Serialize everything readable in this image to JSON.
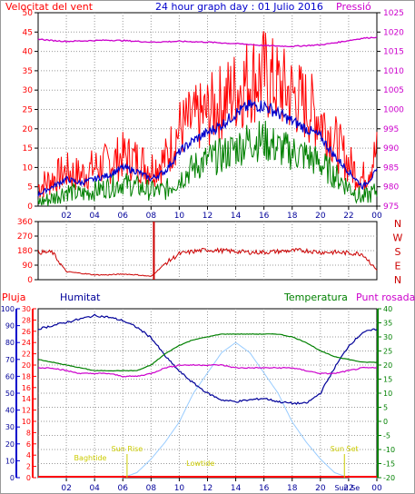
{
  "header": {
    "wind_label": "Velocitat del vent",
    "title": "24 hour graph day : 01 Julio 2016",
    "pressure_label": "Pressió"
  },
  "lower_header": {
    "rain_label": "Pluja",
    "humidity_label": "Humitat",
    "temperature_label": "Temperatura",
    "dewpoint_label": "Punt rosada"
  },
  "colors": {
    "wind": "#ff0000",
    "wind_avg": "#0000cc",
    "wind_low": "#008000",
    "pressure": "#cc00cc",
    "direction": "#cc0000",
    "humidity": "#000099",
    "temperature": "#008000",
    "dewpoint": "#cc00cc",
    "solar": "#99ccff",
    "rain": "#ff0000",
    "sun_labels": "#cccc00",
    "axis_text_left": "#ff0000",
    "axis_text_right": "#cc00cc"
  },
  "chart_data": [
    {
      "type": "line",
      "title": "24 hour graph day : 01 Julio 2016",
      "x_ticks": [
        "02",
        "04",
        "06",
        "08",
        "10",
        "12",
        "14",
        "16",
        "18",
        "20",
        "22",
        "00"
      ],
      "y_left": {
        "label": "Velocitat del vent",
        "ticks": [
          0,
          5,
          10,
          15,
          20,
          25,
          30,
          35,
          40,
          45,
          50
        ],
        "range": [
          0,
          50
        ]
      },
      "y_right": {
        "label": "Pressió",
        "ticks": [
          975,
          980,
          985,
          990,
          995,
          1000,
          1005,
          1010,
          1015,
          1020,
          1025
        ],
        "range": [
          975,
          1025
        ]
      },
      "hours": [
        0,
        1,
        2,
        3,
        4,
        5,
        6,
        7,
        8,
        9,
        10,
        11,
        12,
        13,
        14,
        15,
        16,
        17,
        18,
        19,
        20,
        21,
        22,
        23,
        24
      ],
      "series": [
        {
          "name": "Velocitat del vent",
          "role": "gust",
          "values": [
            5,
            7,
            9,
            8,
            10,
            11,
            13,
            12,
            10,
            12,
            20,
            22,
            24,
            27,
            30,
            33,
            34,
            31,
            29,
            26,
            23,
            17,
            11,
            7,
            14
          ]
        },
        {
          "name": "",
          "role": "average",
          "values": [
            3,
            5,
            7,
            6,
            7,
            8,
            10,
            9,
            7,
            9,
            14,
            17,
            19,
            21,
            24,
            26,
            26,
            24,
            22,
            20,
            18,
            13,
            9,
            5,
            9
          ]
        },
        {
          "name": "",
          "role": "low",
          "values": [
            1,
            2,
            4,
            3,
            4,
            5,
            6,
            5,
            4,
            4,
            7,
            10,
            12,
            13,
            15,
            17,
            17,
            15,
            14,
            13,
            11,
            8,
            5,
            2,
            4
          ]
        },
        {
          "name": "Pressió",
          "values": [
            1018.2,
            1017.8,
            1017.6,
            1017.7,
            1017.8,
            1017.9,
            1017.8,
            1017.6,
            1017.4,
            1017.5,
            1017.6,
            1017.5,
            1017.4,
            1017.2,
            1017.0,
            1016.8,
            1016.5,
            1016.4,
            1016.3,
            1016.5,
            1016.7,
            1017.2,
            1017.8,
            1018.4,
            1018.7
          ]
        }
      ]
    },
    {
      "type": "line",
      "y_labels": [
        "N",
        "W",
        "S",
        "E",
        "N"
      ],
      "y_ticks": [
        0,
        90,
        180,
        270,
        360
      ],
      "y_range": [
        0,
        360
      ],
      "x_ticks": [
        "02",
        "04",
        "06",
        "08",
        "10",
        "12",
        "14",
        "16",
        "18",
        "20",
        "22",
        "00"
      ],
      "hours": [
        0,
        1,
        2,
        3,
        4,
        5,
        6,
        7,
        8,
        9,
        10,
        11,
        12,
        13,
        14,
        15,
        16,
        17,
        18,
        19,
        20,
        21,
        22,
        23,
        24
      ],
      "series": [
        {
          "name": "direction",
          "values": [
            170,
            170,
            50,
            40,
            30,
            30,
            35,
            30,
            20,
            100,
            160,
            175,
            185,
            180,
            175,
            170,
            170,
            175,
            180,
            180,
            170,
            170,
            165,
            160,
            60
          ]
        }
      ],
      "annotations": [
        {
          "type": "spike",
          "hour": 8.2,
          "value": 360
        }
      ]
    },
    {
      "type": "line",
      "x_ticks": [
        "02",
        "04",
        "06",
        "08",
        "10",
        "12",
        "14",
        "16",
        "18",
        "20",
        "22",
        "00"
      ],
      "x_extra_labels": [
        "Sun Se"
      ],
      "y_left_outer": {
        "label": "Humitat",
        "ticks": [
          0,
          10,
          20,
          30,
          40,
          50,
          60,
          70,
          80,
          90,
          100
        ],
        "range": [
          0,
          100
        ]
      },
      "y_left_inner": {
        "label": "Pluja",
        "ticks": [
          0,
          2,
          4,
          6,
          8,
          10,
          12,
          14,
          16,
          18,
          20,
          22,
          24,
          26,
          28,
          30
        ],
        "range": [
          0,
          30
        ]
      },
      "y_right": {
        "label": "Temperatura",
        "ticks": [
          -20,
          -15,
          -10,
          -5,
          0,
          5,
          10,
          15,
          20,
          25,
          30,
          35,
          40
        ],
        "range": [
          -20,
          40
        ]
      },
      "hours": [
        0,
        1,
        2,
        3,
        4,
        5,
        6,
        7,
        8,
        9,
        10,
        11,
        12,
        13,
        14,
        15,
        16,
        17,
        18,
        19,
        20,
        21,
        22,
        23,
        24
      ],
      "series": [
        {
          "name": "Humitat",
          "values": [
            88,
            90,
            92,
            94,
            96,
            95,
            93,
            89,
            83,
            72,
            63,
            56,
            50,
            46,
            45,
            46,
            47,
            45,
            44,
            44,
            50,
            65,
            78,
            86,
            88
          ]
        },
        {
          "name": "Temperatura",
          "values": [
            22,
            21,
            20,
            19,
            18,
            18,
            18,
            18,
            20,
            24,
            27,
            29,
            30,
            31,
            31,
            31,
            31,
            31,
            30,
            28,
            25,
            23,
            22,
            21,
            21
          ]
        },
        {
          "name": "Punt rosada",
          "values": [
            19,
            19,
            18,
            17,
            17,
            17,
            16,
            16,
            17,
            19,
            20,
            20,
            20,
            20,
            19,
            19,
            19,
            19,
            19,
            18,
            17,
            17,
            18,
            19,
            19
          ]
        },
        {
          "name": "Pluja",
          "values": [
            0,
            0,
            0,
            0,
            0,
            0,
            0,
            0,
            0,
            0,
            0,
            0,
            0,
            0,
            0,
            0,
            0,
            0,
            0,
            0,
            0,
            0,
            0,
            0,
            0
          ]
        },
        {
          "name": "solar",
          "values": [
            0,
            0,
            0,
            0,
            0,
            0,
            0,
            3,
            11,
            21,
            33,
            50,
            62,
            74,
            80,
            74,
            62,
            50,
            33,
            21,
            11,
            3,
            0,
            0,
            0
          ]
        }
      ],
      "annotations": [
        {
          "text": "Sun Rise",
          "hour": 6.3
        },
        {
          "text": "Sun Set",
          "hour": 21.7
        },
        {
          "text": "Lowtide",
          "hour": 11.5
        },
        {
          "text": "Baghtide",
          "hour": 3.7
        }
      ]
    }
  ]
}
